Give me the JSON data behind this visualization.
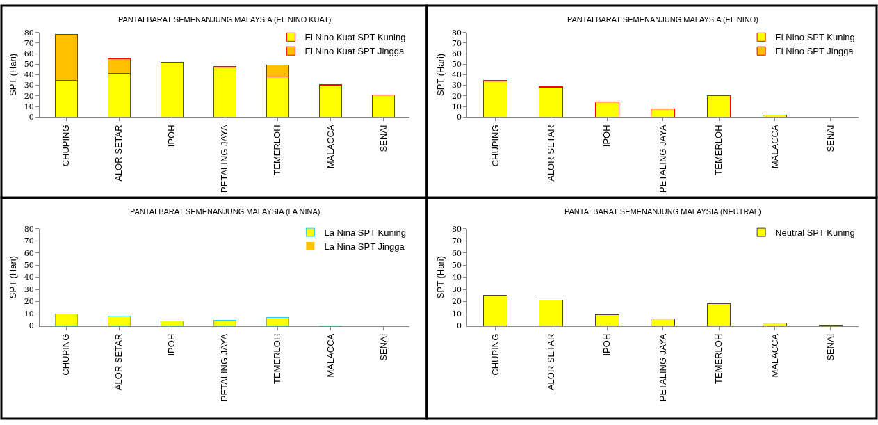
{
  "chart_data": [
    {
      "type": "bar",
      "title": "PANTAI BARAT SEMENANJUNG MALAYSIA (EL NINO KUAT)",
      "ylabel": "SPT (Hari)",
      "categories": [
        "CHUPING",
        "ALOR SETAR",
        "IPOH",
        "PETALING JAYA",
        "TEMERLOH",
        "MALACCA",
        "SENAI"
      ],
      "stacked": true,
      "ylim": [
        0,
        80
      ],
      "yticks": [
        0,
        10,
        20,
        30,
        40,
        50,
        60,
        70,
        80
      ],
      "legend": "top right",
      "grid": false,
      "series": [
        {
          "name": "El Nino Kuat SPT Kuning",
          "color": "#ffff00",
          "values": [
            35,
            41,
            52,
            47,
            38,
            30,
            21
          ]
        },
        {
          "name": "El Nino Kuat SPT Jingga",
          "color": "#ffc000",
          "values": [
            43,
            14,
            0,
            1,
            11,
            1,
            0
          ]
        }
      ]
    },
    {
      "type": "bar",
      "title": "PANTAI BARAT SEMENANJUNG MALAYSIA (EL NINO)",
      "ylabel": "SPT (Hari)",
      "categories": [
        "CHUPING",
        "ALOR SETAR",
        "IPOH",
        "PETALING JAYA",
        "TEMERLOH",
        "MALACCA",
        "SENAI"
      ],
      "stacked": true,
      "ylim": [
        0,
        80
      ],
      "yticks": [
        0,
        10,
        20,
        30,
        40,
        50,
        60,
        70,
        80
      ],
      "legend": "top right",
      "grid": false,
      "series": [
        {
          "name": "El Nino SPT Kuning",
          "color": "#ffff00",
          "values": [
            34,
            28,
            14,
            8,
            20,
            2,
            0
          ]
        },
        {
          "name": "El Nino SPT Jingga",
          "color": "#ffc000",
          "values": [
            1,
            1,
            0,
            0,
            0,
            0,
            0
          ]
        }
      ]
    },
    {
      "type": "bar",
      "title": "PANTAI BARAT SEMENANJUNG MALAYSIA (LA NINA)",
      "ylabel": "SPT (Hari)",
      "categories": [
        "CHUPING",
        "ALOR SETAR",
        "IPOH",
        "PETALING JAYA",
        "TEMERLOH",
        "MALACCA",
        "SENAI"
      ],
      "stacked": true,
      "ylim": [
        0,
        80
      ],
      "yticks": [
        0,
        10,
        20,
        30,
        40,
        50,
        60,
        70,
        80
      ],
      "legend": "top right",
      "grid": false,
      "series": [
        {
          "name": "La Nina SPT Kuning",
          "color": "#ffff00",
          "values": [
            10,
            8,
            4,
            4.5,
            7,
            0.3,
            0
          ]
        },
        {
          "name": "La Nina SPT Jingga",
          "color": "#ffc000",
          "values": [
            0,
            0,
            0,
            0,
            0,
            0,
            0
          ]
        }
      ]
    },
    {
      "type": "bar",
      "title": "PANTAI BARAT SEMENANJUNG MALAYSIA (NEUTRAL)",
      "ylabel": "SPT (Hari)",
      "categories": [
        "CHUPING",
        "ALOR SETAR",
        "IPOH",
        "PETALING JAYA",
        "TEMERLOH",
        "MALACCA",
        "SENAI"
      ],
      "ylim": [
        0,
        80
      ],
      "yticks": [
        0,
        10,
        20,
        30,
        40,
        50,
        60,
        70,
        80
      ],
      "legend": "top right",
      "grid": false,
      "series": [
        {
          "name": "Neutral SPT Kuning",
          "color": "#ffff00",
          "values": [
            25,
            21,
            9,
            6,
            18.5,
            2.5,
            0.7
          ]
        }
      ]
    }
  ]
}
